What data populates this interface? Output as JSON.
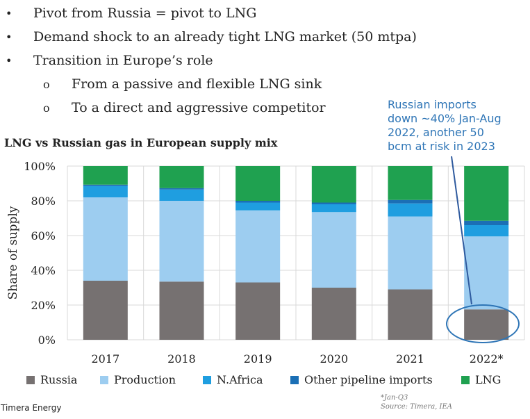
{
  "bullets": [
    {
      "marker": "•",
      "text": "Pivot from Russia = pivot to LNG",
      "level": 1
    },
    {
      "marker": "•",
      "text": "Demand shock to an already tight LNG market (50 mtpa)",
      "level": 1
    },
    {
      "marker": "•",
      "text": "Transition in Europe’s role",
      "level": 1
    },
    {
      "marker": "o",
      "text": "From a passive and flexible LNG sink",
      "level": 2
    },
    {
      "marker": "o",
      "text": "To a direct and aggressive competitor",
      "level": 2
    }
  ],
  "annotation": "Russian imports down ~40% Jan-Aug 2022, another 50 bcm at risk in 2023",
  "annotation_lines": [
    "Russian imports",
    "down ~40% Jan-Aug",
    "2022, another 50",
    "bcm at risk in 2023"
  ],
  "footer": {
    "brand": "Timera Energy",
    "note": "*Jan-Q3",
    "source": "Source: Timera, IEA"
  },
  "chart_data": {
    "type": "bar",
    "stacked": true,
    "title": "LNG vs Russian gas in European supply mix",
    "xlabel": "",
    "ylabel": "Share of supply",
    "ylim": [
      0,
      100
    ],
    "yticks": [
      "0%",
      "20%",
      "40%",
      "60%",
      "80%",
      "100%"
    ],
    "categories": [
      "2017",
      "2018",
      "2019",
      "2020",
      "2021",
      "2022*"
    ],
    "series": [
      {
        "name": "Russia",
        "color": "#767171",
        "values": [
          34,
          33.5,
          33,
          30,
          29,
          17.5
        ]
      },
      {
        "name": "Production",
        "color": "#9dcdf0",
        "values": [
          48,
          46.5,
          41.5,
          43.5,
          42,
          42
        ]
      },
      {
        "name": "N.Africa",
        "color": "#1f9ee0",
        "values": [
          6.5,
          6.5,
          4.5,
          4.5,
          7.5,
          6.5
        ]
      },
      {
        "name": "Other pipeline imports",
        "color": "#1b6fb5",
        "values": [
          0.8,
          0.8,
          1,
          1,
          2,
          2.5
        ]
      },
      {
        "name": "LNG",
        "color": "#1fa150",
        "values": [
          10.7,
          12.7,
          20,
          21,
          19.5,
          31.5
        ]
      }
    ],
    "legend": "bottom",
    "grid": true
  }
}
